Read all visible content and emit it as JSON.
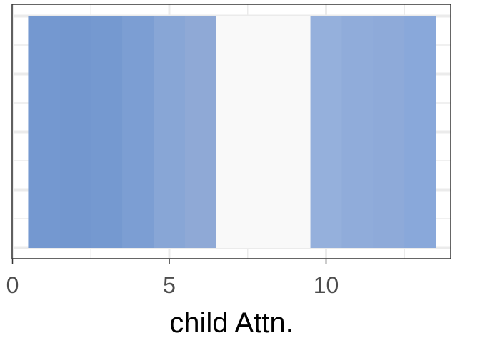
{
  "chart_data": {
    "type": "heatmap",
    "title": "",
    "xlabel": "child Attn.",
    "ylabel": "",
    "xlim": [
      0,
      14
    ],
    "x_ticks": [
      0,
      5,
      10
    ],
    "x_tick_labels": [
      "0",
      "5",
      "10"
    ],
    "grid": true,
    "legend": "none",
    "tiles": [
      {
        "x": 1,
        "color": "#7498d0"
      },
      {
        "x": 2,
        "color": "#7397cf"
      },
      {
        "x": 3,
        "color": "#7599d0"
      },
      {
        "x": 4,
        "color": "#7c9ed3"
      },
      {
        "x": 5,
        "color": "#88a6d6"
      },
      {
        "x": 6,
        "color": "#8fa9d6"
      },
      {
        "x": 7,
        "color": "#f9f9f9"
      },
      {
        "x": 8,
        "color": "#f9f9f9"
      },
      {
        "x": 9,
        "color": "#f9f9f9"
      },
      {
        "x": 10,
        "color": "#95b0dc"
      },
      {
        "x": 11,
        "color": "#90acda"
      },
      {
        "x": 12,
        "color": "#8eaad9"
      },
      {
        "x": 13,
        "color": "#89a8da"
      }
    ]
  }
}
